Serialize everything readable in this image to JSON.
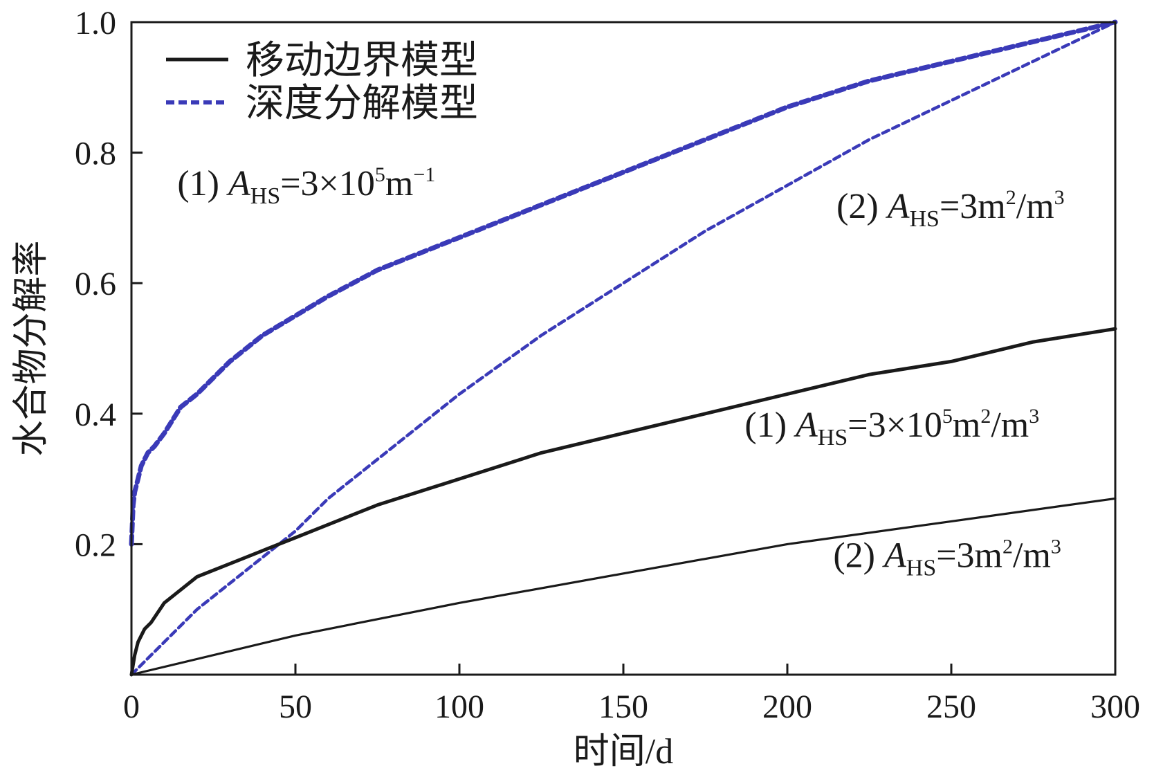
{
  "chart_data": {
    "type": "line",
    "xlabel": "时间/d",
    "ylabel": "水合物分解率",
    "xlim": [
      0,
      300
    ],
    "ylim": [
      0,
      1.0
    ],
    "x_ticks": [
      0,
      50,
      100,
      150,
      200,
      250,
      300
    ],
    "x_tick_labels": [
      "0",
      "50",
      "100",
      "150",
      "200",
      "250",
      "300"
    ],
    "y_ticks": [
      0.2,
      0.4,
      0.6,
      0.8,
      1.0
    ],
    "y_tick_labels": [
      "0.2",
      "0.4",
      "0.6",
      "0.8",
      "1.0"
    ],
    "grid": false,
    "legend_position": "top-left",
    "legend": [
      {
        "label": "移动边界模型",
        "style": "solid",
        "color": "#1a1a1a"
      },
      {
        "label": "深度分解模型",
        "style": "dashed",
        "color": "#3a3ab8"
      }
    ],
    "series": [
      {
        "model": "深度分解模型",
        "case": "(1)",
        "style": "dashed",
        "color": "#3a3ab8",
        "x": [
          0,
          0.5,
          1,
          2,
          3,
          5,
          7,
          10,
          15,
          20,
          30,
          40,
          50,
          60,
          75,
          100,
          125,
          150,
          175,
          200,
          225,
          250,
          275,
          300
        ],
        "y": [
          0.2,
          0.26,
          0.28,
          0.3,
          0.32,
          0.34,
          0.35,
          0.37,
          0.41,
          0.43,
          0.48,
          0.52,
          0.55,
          0.58,
          0.62,
          0.67,
          0.72,
          0.77,
          0.82,
          0.87,
          0.91,
          0.94,
          0.97,
          1.0
        ]
      },
      {
        "model": "深度分解模型",
        "case": "(2)",
        "style": "dashed",
        "color": "#3a3ab8",
        "x": [
          0,
          10,
          20,
          30,
          40,
          50,
          60,
          80,
          100,
          125,
          150,
          175,
          200,
          225,
          250,
          275,
          300
        ],
        "y": [
          0,
          0.05,
          0.1,
          0.14,
          0.18,
          0.22,
          0.27,
          0.35,
          0.43,
          0.52,
          0.6,
          0.68,
          0.75,
          0.82,
          0.88,
          0.94,
          1.0
        ]
      },
      {
        "model": "移动边界模型",
        "case": "(1)",
        "style": "solid",
        "color": "#1a1a1a",
        "x": [
          0,
          1,
          2,
          4,
          6,
          10,
          15,
          20,
          30,
          40,
          50,
          75,
          100,
          125,
          150,
          175,
          200,
          225,
          250,
          275,
          300
        ],
        "y": [
          0,
          0.03,
          0.05,
          0.07,
          0.08,
          0.11,
          0.13,
          0.15,
          0.17,
          0.19,
          0.21,
          0.26,
          0.3,
          0.34,
          0.37,
          0.4,
          0.43,
          0.46,
          0.48,
          0.51,
          0.53
        ]
      },
      {
        "model": "移动边界模型",
        "case": "(2)",
        "style": "solid",
        "color": "#1a1a1a",
        "x": [
          0,
          50,
          100,
          150,
          200,
          250,
          300
        ],
        "y": [
          0,
          0.06,
          0.11,
          0.155,
          0.2,
          0.235,
          0.27
        ]
      }
    ],
    "annotations": [
      {
        "text": "(1) ",
        "var": "A",
        "sub": "HS",
        "rest": "=3×10",
        "sup1": "5",
        "rest2": "m",
        "sup2": "−1",
        "rest3": "",
        "sup3": "",
        "x": 14,
        "y": 0.735
      },
      {
        "text": "(2) ",
        "var": "A",
        "sub": "HS",
        "rest": "=3m",
        "sup1": "2",
        "rest2": "/m",
        "sup2": "3",
        "rest3": "",
        "sup3": "",
        "x": 215,
        "y": 0.7
      },
      {
        "text": "(1) ",
        "var": "A",
        "sub": "HS",
        "rest": "=3×10",
        "sup1": "5",
        "rest2": "m",
        "sup2": "2",
        "rest3": "/m",
        "sup3": "3",
        "x": 187,
        "y": 0.365
      },
      {
        "text": "(2) ",
        "var": "A",
        "sub": "HS",
        "rest": "=3m",
        "sup1": "2",
        "rest2": "/m",
        "sup2": "3",
        "rest3": "",
        "sup3": "",
        "x": 214,
        "y": 0.165
      }
    ]
  }
}
